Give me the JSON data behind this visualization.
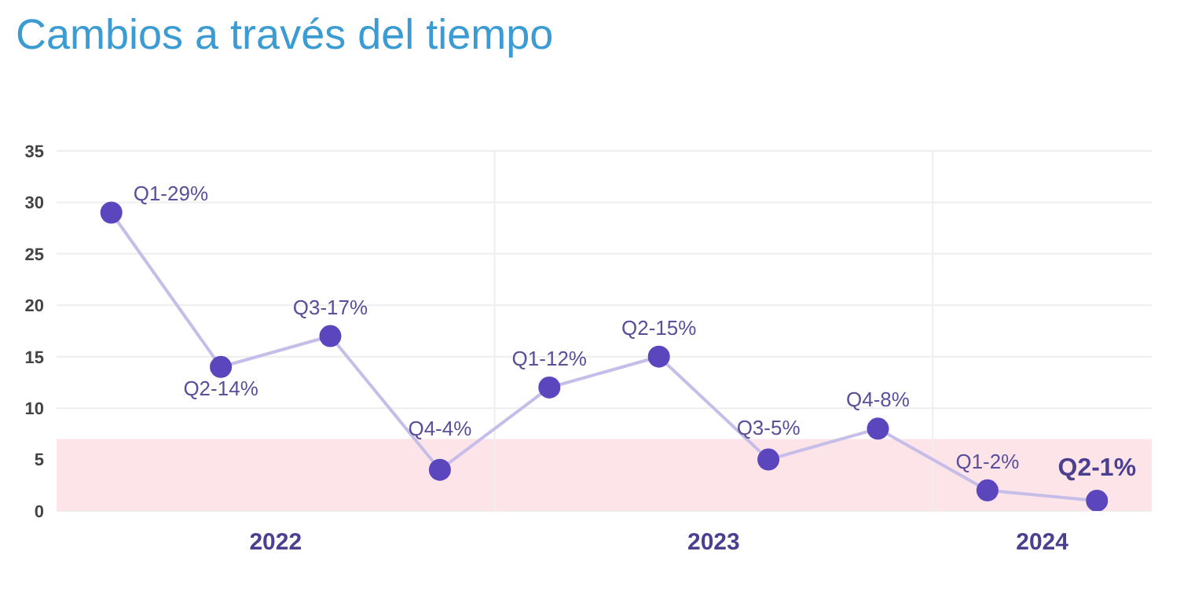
{
  "chart_data": {
    "type": "line",
    "title": "Cambios a través del tiempo",
    "x": [
      2022.125,
      2022.375,
      2022.625,
      2022.875,
      2023.125,
      2023.375,
      2023.625,
      2023.875,
      2024.125,
      2024.375
    ],
    "series": [
      {
        "color": "#5b46bd",
        "values": [
          29,
          14,
          17,
          4,
          12,
          15,
          5,
          8,
          2,
          1
        ]
      }
    ],
    "annotations": [
      {
        "text": "Q1-29%",
        "x": 2022.125,
        "y": 29
      },
      {
        "text": "Q2-14%",
        "x": 2022.375,
        "y": 14
      },
      {
        "text": "Q3-17%",
        "x": 2022.625,
        "y": 17
      },
      {
        "text": "Q4-4%",
        "x": 2022.875,
        "y": 4
      },
      {
        "text": "Q1-12%",
        "x": 2023.125,
        "y": 12
      },
      {
        "text": "Q2-15%",
        "x": 2023.375,
        "y": 15
      },
      {
        "text": "Q3-5%",
        "x": 2023.625,
        "y": 5
      },
      {
        "text": "Q4-8%",
        "x": 2023.875,
        "y": 8
      },
      {
        "text": "Q1-2%",
        "x": 2024.125,
        "y": 2
      },
      {
        "text": "Q2-1%",
        "x": 2024.375,
        "y": 1
      }
    ],
    "xlim": [
      2022,
      2024.5
    ],
    "xticks": [
      {
        "value": 2022.5,
        "label": "2022"
      },
      {
        "value": 2023.5,
        "label": "2023"
      },
      {
        "value": 2024.25,
        "label": "2024"
      }
    ],
    "ylim": [
      0,
      35
    ],
    "yticks": [
      0,
      5,
      10,
      15,
      20,
      25,
      30,
      35
    ],
    "grid": "y",
    "marker": "circle",
    "line_style": "solid",
    "legend": false,
    "ref_lines": [
      {
        "axis": "x",
        "value": 2023,
        "color": "#eeeeee"
      },
      {
        "axis": "x",
        "value": 2024,
        "color": "#eeeeee"
      }
    ],
    "bands": [
      {
        "axis": "y",
        "from": 0,
        "to": 7,
        "color": "#fde4e8"
      }
    ]
  }
}
